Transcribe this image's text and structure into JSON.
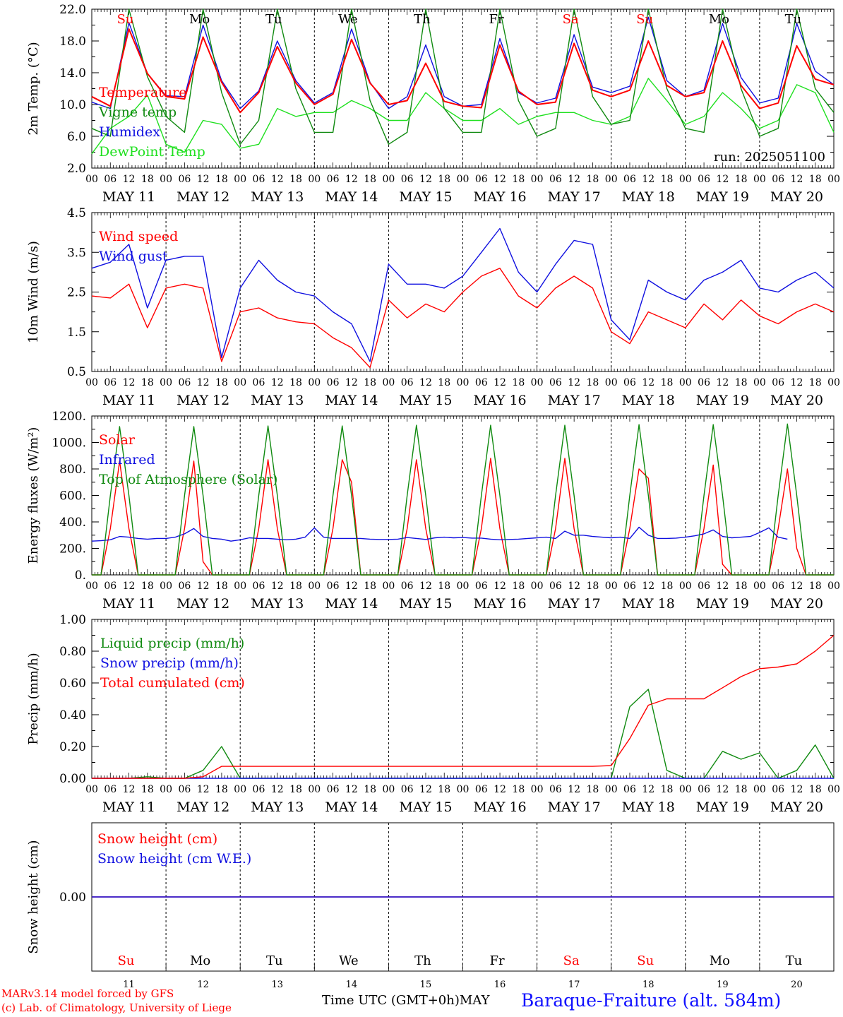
{
  "footer": {
    "credit_line1": "MARv3.14 model forced by GFS",
    "credit_line2": "(c) Lab. of Climatology, University of Liege",
    "x_title": "Time UTC (GMT+0h)",
    "month_label": "MAY",
    "station": "Baraque-Fraiture (alt. 584m)"
  },
  "run_label": "run: 2025051100",
  "colors": {
    "red": "#ff0000",
    "blue": "#1010e0",
    "dark_green": "#108a10",
    "light_green": "#20e020",
    "black": "#000000"
  },
  "days": [
    {
      "name": "Su",
      "date": "MAY 11",
      "num": "11",
      "weekend": true
    },
    {
      "name": "Mo",
      "date": "MAY 12",
      "num": "12",
      "weekend": false
    },
    {
      "name": "Tu",
      "date": "MAY 13",
      "num": "13",
      "weekend": false
    },
    {
      "name": "We",
      "date": "MAY 14",
      "num": "14",
      "weekend": false
    },
    {
      "name": "Th",
      "date": "MAY 15",
      "num": "15",
      "weekend": false
    },
    {
      "name": "Fr",
      "date": "MAY 16",
      "num": "16",
      "weekend": false
    },
    {
      "name": "Sa",
      "date": "MAY 17",
      "num": "17",
      "weekend": true
    },
    {
      "name": "Su",
      "date": "MAY 18",
      "num": "18",
      "weekend": true
    },
    {
      "name": "Mo",
      "date": "MAY 19",
      "num": "19",
      "weekend": false
    },
    {
      "name": "Tu",
      "date": "MAY 20",
      "num": "20",
      "weekend": false
    }
  ],
  "hour_labels": [
    "00",
    "06",
    "12",
    "18"
  ],
  "chart_data": [
    {
      "id": "temperature",
      "type": "line",
      "ylabel": "2m Temp. (°C)",
      "ylim": [
        2,
        22
      ],
      "yticks": [
        "2.0",
        "6.0",
        "10.0",
        "14.0",
        "18.0",
        "22.0"
      ],
      "grid": true,
      "x_unit": "hours since 2025-05-11 00 UTC",
      "step_h": 6,
      "series": [
        {
          "name": "Temperature",
          "color": "#ff0000",
          "values": [
            11,
            9.8,
            19.5,
            13.9,
            11.0,
            10.7,
            18.5,
            12.8,
            9.0,
            11.5,
            17.3,
            12.7,
            10.0,
            11.3,
            18.2,
            12.7,
            10.0,
            10.5,
            15.2,
            10.4,
            9.8,
            9.6,
            17.5,
            11.7,
            10.0,
            10.3,
            17.7,
            11.8,
            11.0,
            11.8,
            18.0,
            12.4,
            11.0,
            11.5,
            18.0,
            12.4,
            9.5,
            10.2,
            17.4,
            13.2,
            12.5
          ]
        },
        {
          "name": "Vigne temp",
          "color": "#108a10",
          "values": [
            7,
            6.0,
            24,
            13.5,
            8.5,
            6.5,
            24,
            11.5,
            5.0,
            8,
            24,
            12,
            6.5,
            6.5,
            24,
            10.5,
            5.0,
            6.5,
            24,
            9.5,
            6.5,
            6.5,
            24,
            10.5,
            6.0,
            7.0,
            24,
            11,
            7.5,
            8,
            24,
            12,
            7.0,
            6.5,
            24,
            12,
            6.0,
            7,
            24,
            12,
            9.0
          ]
        },
        {
          "name": "Humidex",
          "color": "#1010e0",
          "values": [
            10.3,
            9.5,
            20.3,
            13.9,
            11.1,
            11.0,
            20.0,
            13.0,
            9.5,
            11.7,
            18.0,
            13.0,
            10.2,
            11.5,
            19.5,
            12.8,
            9.5,
            11.0,
            17.5,
            11.0,
            9.8,
            10.0,
            18.3,
            11.5,
            10.2,
            10.8,
            18.8,
            12.2,
            11.5,
            12.3,
            21.0,
            13.0,
            11.0,
            11.8,
            20.2,
            13.4,
            10.2,
            10.8,
            20.2,
            14.2,
            12.5
          ]
        },
        {
          "name": "DewPoint Temp",
          "color": "#20e020",
          "values": [
            3.8,
            7.0,
            8.5,
            11.2,
            5.0,
            4.0,
            8.0,
            7.5,
            4.5,
            5.0,
            9.5,
            8.5,
            9.0,
            9.0,
            10.5,
            9.5,
            8.0,
            8.0,
            11.5,
            9.5,
            8.0,
            8.0,
            9.5,
            7.5,
            8.5,
            9.0,
            9.0,
            8.0,
            7.5,
            8.5,
            13.3,
            10.5,
            7.5,
            8.5,
            11.5,
            9.5,
            7.0,
            8.0,
            12.5,
            11.5,
            6.5
          ]
        }
      ]
    },
    {
      "id": "wind",
      "type": "line",
      "ylabel": "10m Wind (m/s)",
      "ylim": [
        0.5,
        4.5
      ],
      "yticks": [
        "0.5",
        "1.5",
        "2.5",
        "3.5",
        "4.5"
      ],
      "grid": true,
      "x_unit": "hours since 2025-05-11 00 UTC",
      "step_h": 6,
      "series": [
        {
          "name": "Wind speed",
          "color": "#ff0000",
          "values": [
            2.4,
            2.35,
            2.7,
            1.6,
            2.6,
            2.7,
            2.6,
            0.75,
            2.0,
            2.1,
            1.85,
            1.75,
            1.7,
            1.35,
            1.1,
            0.6,
            2.3,
            1.85,
            2.2,
            2.0,
            2.5,
            2.9,
            3.1,
            2.4,
            2.1,
            2.6,
            2.9,
            2.6,
            1.5,
            1.2,
            2.0,
            1.8,
            1.6,
            2.2,
            1.8,
            2.3,
            1.9,
            1.7,
            2.0,
            2.2,
            2.0
          ]
        },
        {
          "name": "Wind gust",
          "color": "#1010e0",
          "values": [
            3.1,
            3.25,
            3.7,
            2.1,
            3.3,
            3.4,
            3.4,
            0.85,
            2.6,
            3.3,
            2.8,
            2.5,
            2.4,
            2.0,
            1.7,
            0.75,
            3.2,
            2.7,
            2.7,
            2.6,
            2.9,
            3.5,
            4.1,
            3.0,
            2.5,
            3.2,
            3.8,
            3.7,
            1.8,
            1.3,
            2.8,
            2.5,
            2.3,
            2.8,
            3.0,
            3.3,
            2.6,
            2.5,
            2.8,
            3.0,
            2.6
          ]
        }
      ]
    },
    {
      "id": "fluxes",
      "type": "line",
      "ylabel": "Energy fluxes (W/m²)",
      "ylim": [
        0,
        1200
      ],
      "yticks": [
        "0.",
        "200.",
        "400.",
        "600.",
        "800.",
        "1000.",
        "1200."
      ],
      "grid": true,
      "x_unit": "hours since 2025-05-11 00 UTC",
      "step_h": 3,
      "series": [
        {
          "name": "Solar",
          "color": "#ff0000",
          "values": [
            0,
            0,
            350,
            860,
            350,
            0,
            0,
            0,
            0,
            0,
            350,
            860,
            100,
            0,
            0,
            0,
            0,
            0,
            350,
            870,
            350,
            0,
            0,
            0,
            0,
            0,
            350,
            870,
            700,
            0,
            0,
            0,
            0,
            0,
            350,
            870,
            350,
            0,
            0,
            0,
            0,
            0,
            350,
            880,
            350,
            0,
            0,
            0,
            0,
            0,
            350,
            880,
            350,
            0,
            0,
            0,
            0,
            0,
            350,
            800,
            730,
            0,
            0,
            0,
            0,
            0,
            350,
            830,
            80,
            0,
            0,
            0,
            0,
            0,
            350,
            800,
            200,
            0,
            0,
            0,
            0
          ]
        },
        {
          "name": "Infrared",
          "color": "#1010e0",
          "values": [
            255,
            258,
            265,
            290,
            285,
            275,
            270,
            275,
            275,
            285,
            310,
            350,
            290,
            275,
            270,
            255,
            265,
            280,
            275,
            275,
            270,
            265,
            270,
            285,
            355,
            285,
            275,
            275,
            275,
            275,
            270,
            268,
            268,
            270,
            282,
            275,
            268,
            280,
            285,
            280,
            282,
            278,
            278,
            270,
            265,
            268,
            270,
            275,
            280,
            285,
            275,
            330,
            300,
            300,
            290,
            285,
            280,
            285,
            275,
            360,
            300,
            275,
            275,
            278,
            285,
            295,
            310,
            340,
            290,
            280,
            285,
            290,
            320,
            355,
            285,
            270
          ]
        },
        {
          "name": "Top of Atmosphere (Solar)",
          "color": "#108a10",
          "values": [
            0,
            0,
            600,
            1120,
            600,
            0,
            0,
            0,
            0,
            0,
            600,
            1120,
            600,
            0,
            0,
            0,
            0,
            0,
            600,
            1125,
            600,
            0,
            0,
            0,
            0,
            0,
            600,
            1125,
            600,
            0,
            0,
            0,
            0,
            0,
            600,
            1130,
            600,
            0,
            0,
            0,
            0,
            0,
            600,
            1130,
            600,
            0,
            0,
            0,
            0,
            0,
            600,
            1130,
            600,
            0,
            0,
            0,
            0,
            0,
            600,
            1135,
            600,
            0,
            0,
            0,
            0,
            0,
            600,
            1135,
            600,
            0,
            0,
            0,
            0,
            0,
            600,
            1140,
            600,
            0,
            0,
            0,
            0
          ]
        }
      ]
    },
    {
      "id": "precip",
      "type": "line",
      "ylabel": "Precip (mm/h)",
      "ylim": [
        0,
        1
      ],
      "yticks": [
        "0.00",
        "0.20",
        "0.40",
        "0.60",
        "0.80",
        "1.00"
      ],
      "grid": true,
      "x_unit": "hours since 2025-05-11 00 UTC",
      "step_h": 6,
      "series": [
        {
          "name": "Liquid precip (mm/h)",
          "color": "#108a10",
          "values": [
            0,
            0,
            0,
            0.01,
            0,
            0,
            0.05,
            0.2,
            0,
            0,
            0,
            0,
            0,
            0,
            0,
            0,
            0,
            0,
            0,
            0,
            0,
            0,
            0,
            0,
            0,
            0,
            0,
            0,
            0,
            0.45,
            0.56,
            0.05,
            0,
            0,
            0.17,
            0.12,
            0.16,
            0,
            0.05,
            0.21,
            0
          ]
        },
        {
          "name": "Snow precip (mm/h)",
          "color": "#1010e0",
          "values": [
            0,
            0,
            0,
            0,
            0,
            0,
            0,
            0,
            0,
            0,
            0,
            0,
            0,
            0,
            0,
            0,
            0,
            0,
            0,
            0,
            0,
            0,
            0,
            0,
            0,
            0,
            0,
            0,
            0,
            0,
            0,
            0,
            0,
            0,
            0,
            0,
            0,
            0,
            0,
            0,
            0
          ]
        },
        {
          "name": "Total cumulated (cm)",
          "color": "#ff0000",
          "values": [
            0,
            0,
            0,
            0,
            0,
            0,
            0.01,
            0.075,
            0.075,
            0.075,
            0.075,
            0.075,
            0.075,
            0.075,
            0.075,
            0.075,
            0.075,
            0.075,
            0.075,
            0.075,
            0.075,
            0.075,
            0.075,
            0.075,
            0.075,
            0.075,
            0.075,
            0.075,
            0.08,
            0.25,
            0.46,
            0.5,
            0.5,
            0.5,
            0.57,
            0.64,
            0.69,
            0.7,
            0.72,
            0.8,
            0.9
          ]
        }
      ]
    },
    {
      "id": "snow",
      "type": "line",
      "ylabel": "Snow height (cm)",
      "ylim": [
        -1,
        1
      ],
      "yticks": [
        "0.00"
      ],
      "grid": true,
      "x_unit": "hours since 2025-05-11 00 UTC",
      "step_h": 6,
      "series": [
        {
          "name": "Snow height (cm)",
          "color": "#ff0000",
          "values": [
            0,
            0,
            0,
            0,
            0,
            0,
            0,
            0,
            0,
            0,
            0,
            0,
            0,
            0,
            0,
            0,
            0,
            0,
            0,
            0,
            0,
            0,
            0,
            0,
            0,
            0,
            0,
            0,
            0,
            0,
            0,
            0,
            0,
            0,
            0,
            0,
            0,
            0,
            0,
            0,
            0
          ]
        },
        {
          "name": "Snow height (cm W.E.)",
          "color": "#1010e0",
          "values": [
            0,
            0,
            0,
            0,
            0,
            0,
            0,
            0,
            0,
            0,
            0,
            0,
            0,
            0,
            0,
            0,
            0,
            0,
            0,
            0,
            0,
            0,
            0,
            0,
            0,
            0,
            0,
            0,
            0,
            0,
            0,
            0,
            0,
            0,
            0,
            0,
            0,
            0,
            0,
            0,
            0
          ]
        }
      ]
    }
  ]
}
